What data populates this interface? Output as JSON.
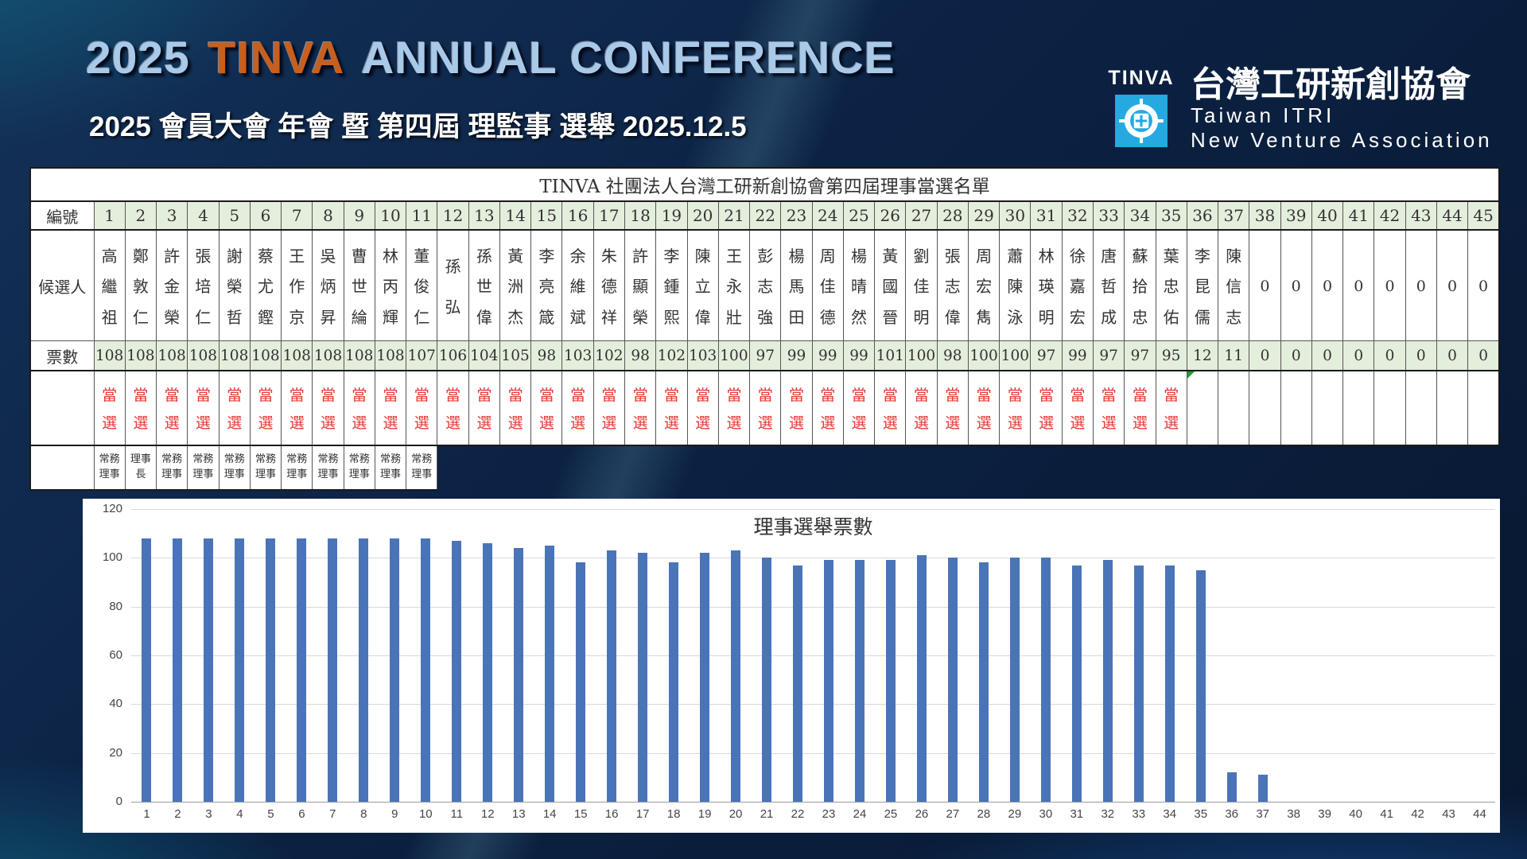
{
  "header": {
    "title_year": "2025",
    "title_org": "TINVA",
    "title_rest": "ANNUAL CONFERENCE",
    "subtitle": "2025  會員大會 年會 暨 第四屆 理監事 選舉   2025.12.5",
    "title_blue_color": "#a9c9e9",
    "title_orange_color": "#c75f1e",
    "logo": {
      "wordmark": "TINVA",
      "org_zh": "台灣工研新創協會",
      "org_en_line1": "Taiwan ITRI",
      "org_en_line2": "New Venture Association",
      "icon_color": "#25a9e0"
    }
  },
  "table": {
    "title": "TINVA 社團法人台灣工研新創協會第四屆理事當選名單",
    "row_labels": {
      "id": "編號",
      "candidate": "候選人",
      "votes": "票數"
    },
    "elected_label": "當選",
    "elected_color": "#e53935",
    "header_fill": "#e4eedc",
    "marker_col": 36,
    "columns": [
      {
        "no": 1,
        "name": "高繼祖",
        "votes": 108,
        "elected": true,
        "role": "常務理事"
      },
      {
        "no": 2,
        "name": "鄭敦仁",
        "votes": 108,
        "elected": true,
        "role": "理事長"
      },
      {
        "no": 3,
        "name": "許金榮",
        "votes": 108,
        "elected": true,
        "role": "常務理事"
      },
      {
        "no": 4,
        "name": "張培仁",
        "votes": 108,
        "elected": true,
        "role": "常務理事"
      },
      {
        "no": 5,
        "name": "謝榮哲",
        "votes": 108,
        "elected": true,
        "role": "常務理事"
      },
      {
        "no": 6,
        "name": "蔡尤鏗",
        "votes": 108,
        "elected": true,
        "role": "常務理事"
      },
      {
        "no": 7,
        "name": "王作京",
        "votes": 108,
        "elected": true,
        "role": "常務理事"
      },
      {
        "no": 8,
        "name": "吳炳昇",
        "votes": 108,
        "elected": true,
        "role": "常務理事"
      },
      {
        "no": 9,
        "name": "曹世綸",
        "votes": 108,
        "elected": true,
        "role": "常務理事"
      },
      {
        "no": 10,
        "name": "林丙輝",
        "votes": 108,
        "elected": true,
        "role": "常務理事"
      },
      {
        "no": 11,
        "name": "董俊仁",
        "votes": 107,
        "elected": true,
        "role": "常務理事"
      },
      {
        "no": 12,
        "name": "孫弘",
        "votes": 106,
        "elected": true,
        "role": ""
      },
      {
        "no": 13,
        "name": "孫世偉",
        "votes": 104,
        "elected": true,
        "role": ""
      },
      {
        "no": 14,
        "name": "黃洲杰",
        "votes": 105,
        "elected": true,
        "role": ""
      },
      {
        "no": 15,
        "name": "李亮箴",
        "votes": 98,
        "elected": true,
        "role": ""
      },
      {
        "no": 16,
        "name": "余維斌",
        "votes": 103,
        "elected": true,
        "role": ""
      },
      {
        "no": 17,
        "name": "朱德祥",
        "votes": 102,
        "elected": true,
        "role": ""
      },
      {
        "no": 18,
        "name": "許顯榮",
        "votes": 98,
        "elected": true,
        "role": ""
      },
      {
        "no": 19,
        "name": "李鍾熙",
        "votes": 102,
        "elected": true,
        "role": ""
      },
      {
        "no": 20,
        "name": "陳立偉",
        "votes": 103,
        "elected": true,
        "role": ""
      },
      {
        "no": 21,
        "name": "王永壯",
        "votes": 100,
        "elected": true,
        "role": ""
      },
      {
        "no": 22,
        "name": "彭志強",
        "votes": 97,
        "elected": true,
        "role": ""
      },
      {
        "no": 23,
        "name": "楊馬田",
        "votes": 99,
        "elected": true,
        "role": ""
      },
      {
        "no": 24,
        "name": "周佳德",
        "votes": 99,
        "elected": true,
        "role": ""
      },
      {
        "no": 25,
        "name": "楊晴然",
        "votes": 99,
        "elected": true,
        "role": ""
      },
      {
        "no": 26,
        "name": "黃國晉",
        "votes": 101,
        "elected": true,
        "role": ""
      },
      {
        "no": 27,
        "name": "劉佳明",
        "votes": 100,
        "elected": true,
        "role": ""
      },
      {
        "no": 28,
        "name": "張志偉",
        "votes": 98,
        "elected": true,
        "role": ""
      },
      {
        "no": 29,
        "name": "周宏雋",
        "votes": 100,
        "elected": true,
        "role": ""
      },
      {
        "no": 30,
        "name": "蕭陳泳",
        "votes": 100,
        "elected": true,
        "role": ""
      },
      {
        "no": 31,
        "name": "林瑛明",
        "votes": 97,
        "elected": true,
        "role": ""
      },
      {
        "no": 32,
        "name": "徐嘉宏",
        "votes": 99,
        "elected": true,
        "role": ""
      },
      {
        "no": 33,
        "name": "唐哲成",
        "votes": 97,
        "elected": true,
        "role": ""
      },
      {
        "no": 34,
        "name": "蘇拾忠",
        "votes": 97,
        "elected": true,
        "role": ""
      },
      {
        "no": 35,
        "name": "葉忠佑",
        "votes": 95,
        "elected": true,
        "role": ""
      },
      {
        "no": 36,
        "name": "李昆儒",
        "votes": 12,
        "elected": false,
        "role": ""
      },
      {
        "no": 37,
        "name": "陳信志",
        "votes": 11,
        "elected": false,
        "role": ""
      },
      {
        "no": 38,
        "name": "0",
        "votes": 0,
        "elected": false,
        "role": ""
      },
      {
        "no": 39,
        "name": "0",
        "votes": 0,
        "elected": false,
        "role": ""
      },
      {
        "no": 40,
        "name": "0",
        "votes": 0,
        "elected": false,
        "role": ""
      },
      {
        "no": 41,
        "name": "0",
        "votes": 0,
        "elected": false,
        "role": ""
      },
      {
        "no": 42,
        "name": "0",
        "votes": 0,
        "elected": false,
        "role": ""
      },
      {
        "no": 43,
        "name": "0",
        "votes": 0,
        "elected": false,
        "role": ""
      },
      {
        "no": 44,
        "name": "0",
        "votes": 0,
        "elected": false,
        "role": ""
      },
      {
        "no": 45,
        "name": "0",
        "votes": 0,
        "elected": false,
        "role": ""
      }
    ]
  },
  "chart_data": {
    "type": "bar",
    "title": "理事選舉票數",
    "categories": [
      1,
      2,
      3,
      4,
      5,
      6,
      7,
      8,
      9,
      10,
      11,
      12,
      13,
      14,
      15,
      16,
      17,
      18,
      19,
      20,
      21,
      22,
      23,
      24,
      25,
      26,
      27,
      28,
      29,
      30,
      31,
      32,
      33,
      34,
      35,
      36,
      37,
      38,
      39,
      40,
      41,
      42,
      43,
      44
    ],
    "values": [
      108,
      108,
      108,
      108,
      108,
      108,
      108,
      108,
      108,
      108,
      107,
      106,
      104,
      105,
      98,
      103,
      102,
      98,
      102,
      103,
      100,
      97,
      99,
      99,
      99,
      101,
      100,
      98,
      100,
      100,
      97,
      99,
      97,
      97,
      95,
      12,
      11,
      0,
      0,
      0,
      0,
      0,
      0,
      0
    ],
    "ylim": [
      0,
      120
    ],
    "yticks": [
      0,
      20,
      40,
      60,
      80,
      100,
      120
    ],
    "bar_color": "#4a74b8",
    "grid": true,
    "legend": false,
    "xlabel": "",
    "ylabel": ""
  }
}
